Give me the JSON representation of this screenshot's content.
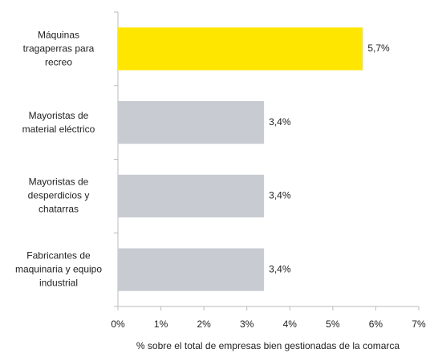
{
  "chart_data": {
    "type": "bar",
    "orientation": "horizontal",
    "categories": [
      "Máquinas\ntragaperras para\nrecreo",
      "Mayoristas de\nmaterial eléctrico",
      "Mayoristas de\ndesperdicios y\nchatarras",
      "Fabricantes de\nmaquinaria y equipo\nindustrial"
    ],
    "values": [
      5.7,
      3.4,
      3.4,
      3.4
    ],
    "value_labels": [
      "5,7%",
      "3,4%",
      "3,4%",
      "3,4%"
    ],
    "colors": [
      "#ffe600",
      "#c8cbd1",
      "#c8cbd1",
      "#c8cbd1"
    ],
    "xlim": [
      0,
      7
    ],
    "xticks": [
      {
        "value": 0,
        "label": "0%"
      },
      {
        "value": 1,
        "label": "1%"
      },
      {
        "value": 2,
        "label": "2%"
      },
      {
        "value": 3,
        "label": "3%"
      },
      {
        "value": 4,
        "label": "4%"
      },
      {
        "value": 5,
        "label": "5%"
      },
      {
        "value": 6,
        "label": "6%"
      },
      {
        "value": 7,
        "label": "7%"
      }
    ],
    "x_label": "% sobre el total de empresas bien gestionadas de la comarca",
    "grid": false
  }
}
